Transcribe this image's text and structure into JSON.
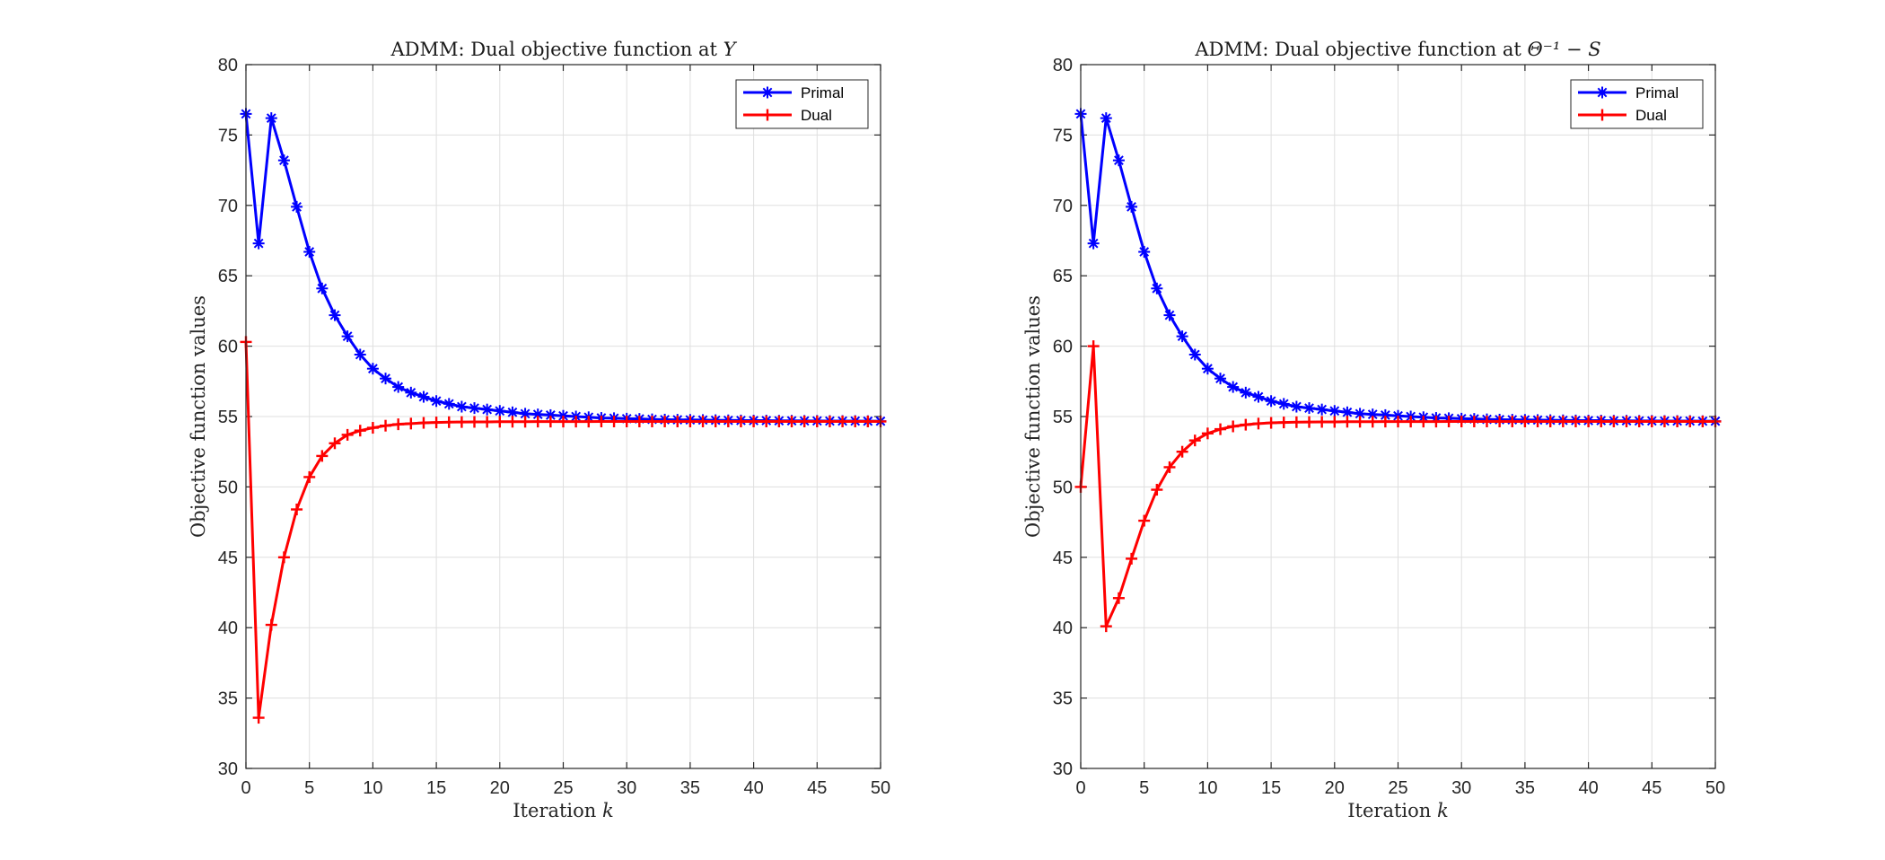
{
  "colors": {
    "primal": "#0000FF",
    "dual": "#FF0000",
    "grid": "#DFDFDF",
    "axis": "#262626"
  },
  "chart_data": [
    {
      "type": "line",
      "title": "ADMM: Dual objective function at",
      "title_math": "Y",
      "xlabel": "Iteration",
      "xlabel_math": "k",
      "ylabel": "Objective function values",
      "xlim": [
        0,
        50
      ],
      "ylim": [
        30,
        80
      ],
      "xticks": [
        0,
        5,
        10,
        15,
        20,
        25,
        30,
        35,
        40,
        45,
        50
      ],
      "yticks": [
        30,
        35,
        40,
        45,
        50,
        55,
        60,
        65,
        70,
        75,
        80
      ],
      "grid": true,
      "legend_position": "top-right",
      "x": [
        0,
        1,
        2,
        3,
        4,
        5,
        6,
        7,
        8,
        9,
        10,
        11,
        12,
        13,
        14,
        15,
        16,
        17,
        18,
        19,
        20,
        21,
        22,
        23,
        24,
        25,
        26,
        27,
        28,
        29,
        30,
        31,
        32,
        33,
        34,
        35,
        36,
        37,
        38,
        39,
        40,
        41,
        42,
        43,
        44,
        45,
        46,
        47,
        48,
        49,
        50
      ],
      "series": [
        {
          "name": "Primal",
          "color": "#0000FF",
          "marker": "asterisk",
          "values": [
            76.5,
            67.3,
            76.2,
            73.2,
            69.9,
            66.7,
            64.1,
            62.2,
            60.7,
            59.4,
            58.4,
            57.7,
            57.1,
            56.7,
            56.4,
            56.1,
            55.9,
            55.7,
            55.6,
            55.5,
            55.4,
            55.3,
            55.2,
            55.15,
            55.1,
            55.05,
            55.0,
            54.95,
            54.9,
            54.88,
            54.85,
            54.83,
            54.8,
            54.78,
            54.77,
            54.76,
            54.75,
            54.74,
            54.73,
            54.72,
            54.71,
            54.71,
            54.7,
            54.7,
            54.69,
            54.69,
            54.68,
            54.68,
            54.68,
            54.67,
            54.67
          ]
        },
        {
          "name": "Dual",
          "color": "#FF0000",
          "marker": "plus",
          "values": [
            60.3,
            33.6,
            40.2,
            45.0,
            48.4,
            50.7,
            52.2,
            53.1,
            53.7,
            54.0,
            54.2,
            54.35,
            54.45,
            54.5,
            54.55,
            54.58,
            54.6,
            54.61,
            54.62,
            54.62,
            54.63,
            54.63,
            54.63,
            54.64,
            54.64,
            54.64,
            54.64,
            54.64,
            54.65,
            54.65,
            54.65,
            54.65,
            54.65,
            54.65,
            54.65,
            54.65,
            54.65,
            54.65,
            54.65,
            54.65,
            54.65,
            54.65,
            54.65,
            54.65,
            54.65,
            54.65,
            54.65,
            54.65,
            54.65,
            54.65,
            54.65
          ]
        }
      ]
    },
    {
      "type": "line",
      "title": "ADMM: Dual objective function at",
      "title_math": "Θ⁻¹ − S",
      "xlabel": "Iteration",
      "xlabel_math": "k",
      "ylabel": "Objective function values",
      "xlim": [
        0,
        50
      ],
      "ylim": [
        30,
        80
      ],
      "xticks": [
        0,
        5,
        10,
        15,
        20,
        25,
        30,
        35,
        40,
        45,
        50
      ],
      "yticks": [
        30,
        35,
        40,
        45,
        50,
        55,
        60,
        65,
        70,
        75,
        80
      ],
      "grid": true,
      "legend_position": "top-right",
      "x": [
        0,
        1,
        2,
        3,
        4,
        5,
        6,
        7,
        8,
        9,
        10,
        11,
        12,
        13,
        14,
        15,
        16,
        17,
        18,
        19,
        20,
        21,
        22,
        23,
        24,
        25,
        26,
        27,
        28,
        29,
        30,
        31,
        32,
        33,
        34,
        35,
        36,
        37,
        38,
        39,
        40,
        41,
        42,
        43,
        44,
        45,
        46,
        47,
        48,
        49,
        50
      ],
      "series": [
        {
          "name": "Primal",
          "color": "#0000FF",
          "marker": "asterisk",
          "values": [
            76.5,
            67.3,
            76.2,
            73.2,
            69.9,
            66.7,
            64.1,
            62.2,
            60.7,
            59.4,
            58.4,
            57.7,
            57.1,
            56.7,
            56.4,
            56.1,
            55.9,
            55.7,
            55.6,
            55.5,
            55.4,
            55.3,
            55.2,
            55.15,
            55.1,
            55.05,
            55.0,
            54.95,
            54.9,
            54.88,
            54.85,
            54.83,
            54.8,
            54.78,
            54.77,
            54.76,
            54.75,
            54.74,
            54.73,
            54.72,
            54.71,
            54.71,
            54.7,
            54.7,
            54.69,
            54.69,
            54.68,
            54.68,
            54.68,
            54.67,
            54.67
          ]
        },
        {
          "name": "Dual",
          "color": "#FF0000",
          "marker": "plus",
          "values": [
            50.0,
            60.0,
            40.1,
            42.1,
            44.9,
            47.6,
            49.8,
            51.4,
            52.5,
            53.3,
            53.8,
            54.1,
            54.3,
            54.42,
            54.5,
            54.55,
            54.58,
            54.6,
            54.61,
            54.62,
            54.62,
            54.63,
            54.63,
            54.63,
            54.64,
            54.64,
            54.64,
            54.64,
            54.64,
            54.65,
            54.65,
            54.65,
            54.65,
            54.65,
            54.65,
            54.65,
            54.65,
            54.65,
            54.65,
            54.65,
            54.65,
            54.65,
            54.65,
            54.65,
            54.65,
            54.65,
            54.65,
            54.65,
            54.65,
            54.65,
            54.65
          ]
        }
      ]
    }
  ]
}
